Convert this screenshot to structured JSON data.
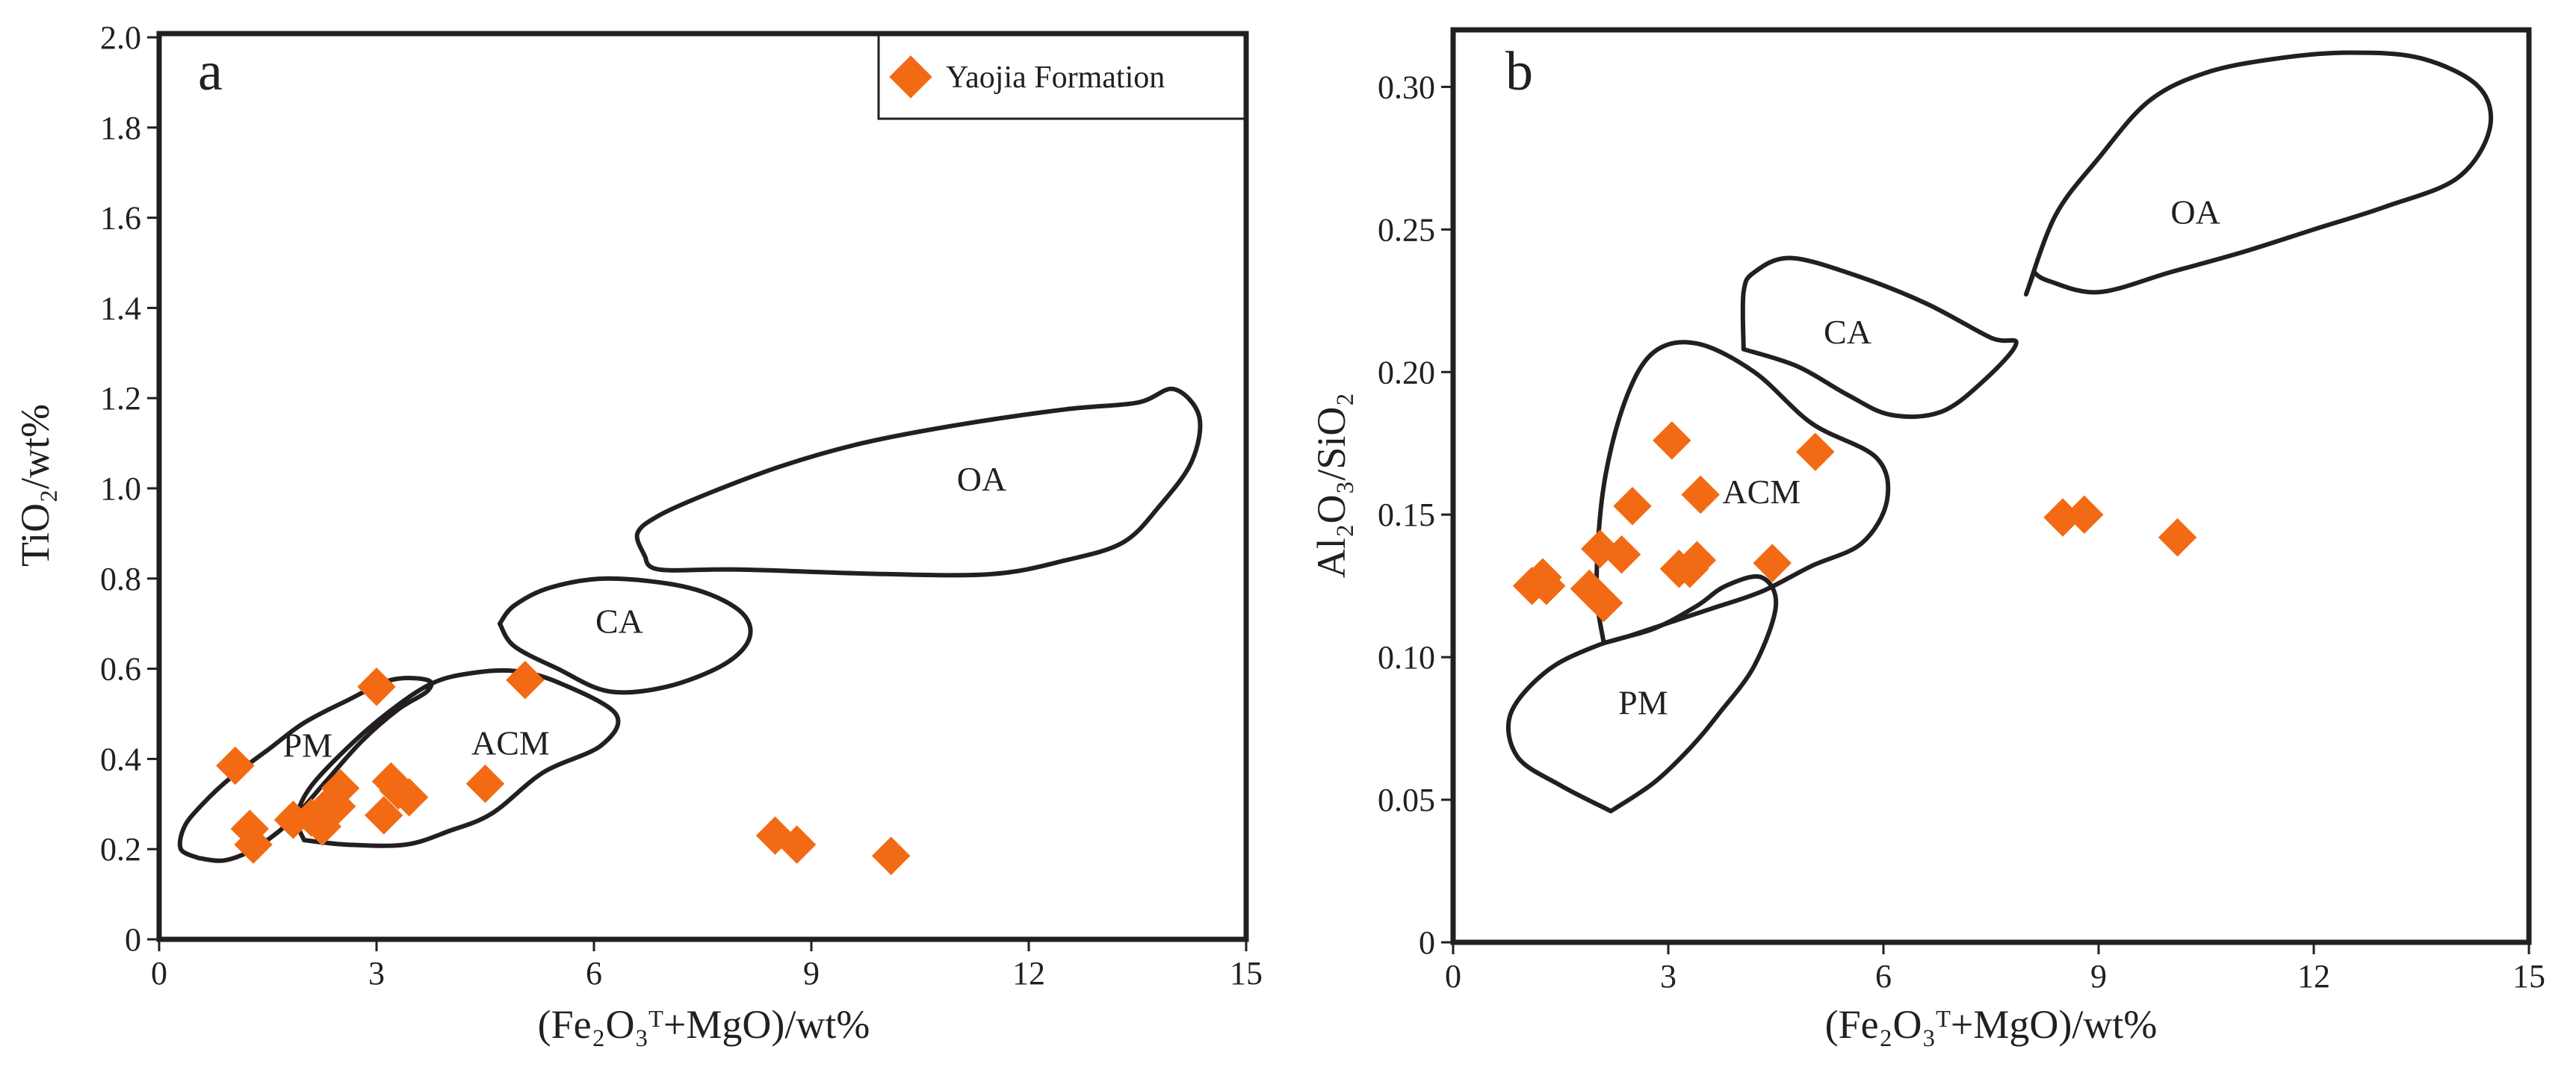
{
  "series_name": "Yaojia Formation",
  "colors": {
    "marker": "#f26a13",
    "line": "#231f20"
  },
  "chart_data": [
    {
      "type": "scatter",
      "panel": "a",
      "xlabel": "(Fe₂O₃ᵀ+MgO)/wt%",
      "ylabel": "TiO₂/wt%",
      "xlim": [
        0,
        15
      ],
      "ylim": [
        0,
        2.0
      ],
      "xticks": [
        0,
        3,
        6,
        9,
        12,
        15
      ],
      "xtick_labels": [
        "0",
        "3",
        "6",
        "9",
        "12",
        "15"
      ],
      "yticks": [
        0,
        0.2,
        0.4,
        0.6,
        0.8,
        1.0,
        1.2,
        1.4,
        1.6,
        1.8,
        2.0
      ],
      "ytick_labels": [
        "0",
        "0.2",
        "0.4",
        "0.6",
        "0.8",
        "1.0",
        "1.2",
        "1.4",
        "1.6",
        "1.8",
        "2.0"
      ],
      "legend": {
        "entries": [
          "Yaojia Formation"
        ],
        "position": "top-right"
      },
      "series": [
        {
          "name": "Yaojia Formation",
          "x": [
            1.05,
            1.25,
            1.3,
            1.85,
            2.1,
            2.25,
            2.35,
            2.45,
            2.5,
            3.0,
            3.1,
            3.2,
            3.3,
            3.45,
            4.5,
            5.05,
            8.5,
            8.8,
            10.1
          ],
          "y": [
            0.385,
            0.245,
            0.21,
            0.265,
            0.27,
            0.25,
            0.3,
            0.295,
            0.335,
            0.56,
            0.275,
            0.35,
            0.33,
            0.315,
            0.345,
            0.575,
            0.23,
            0.21,
            0.185
          ]
        }
      ],
      "fields": [
        {
          "label": "PM",
          "label_at": [
            2.05,
            0.405
          ],
          "outline": [
            [
              0.55,
              0.18
            ],
            [
              0.3,
              0.2
            ],
            [
              0.35,
              0.25
            ],
            [
              0.6,
              0.3
            ],
            [
              1.0,
              0.36
            ],
            [
              1.5,
              0.42
            ],
            [
              2.0,
              0.48
            ],
            [
              2.6,
              0.53
            ],
            [
              3.2,
              0.575
            ],
            [
              3.7,
              0.575
            ],
            [
              3.7,
              0.55
            ],
            [
              3.3,
              0.51
            ],
            [
              2.8,
              0.44
            ],
            [
              2.3,
              0.35
            ],
            [
              1.8,
              0.26
            ],
            [
              1.3,
              0.2
            ],
            [
              0.9,
              0.175
            ],
            [
              0.55,
              0.18
            ]
          ]
        },
        {
          "label": "ACM",
          "label_at": [
            4.85,
            0.41
          ],
          "outline": [
            [
              2.0,
              0.22
            ],
            [
              1.9,
              0.27
            ],
            [
              2.1,
              0.34
            ],
            [
              2.7,
              0.44
            ],
            [
              3.3,
              0.52
            ],
            [
              3.8,
              0.57
            ],
            [
              4.3,
              0.59
            ],
            [
              4.9,
              0.595
            ],
            [
              5.5,
              0.57
            ],
            [
              6.3,
              0.5
            ],
            [
              6.1,
              0.43
            ],
            [
              5.3,
              0.37
            ],
            [
              4.6,
              0.28
            ],
            [
              4.0,
              0.24
            ],
            [
              3.4,
              0.21
            ],
            [
              2.6,
              0.21
            ],
            [
              2.0,
              0.22
            ]
          ]
        },
        {
          "label": "CA",
          "label_at": [
            6.35,
            0.68
          ],
          "outline": [
            [
              4.7,
              0.7
            ],
            [
              4.9,
              0.74
            ],
            [
              5.4,
              0.78
            ],
            [
              6.2,
              0.8
            ],
            [
              7.3,
              0.78
            ],
            [
              8.0,
              0.73
            ],
            [
              8.15,
              0.67
            ],
            [
              7.8,
              0.61
            ],
            [
              7.0,
              0.56
            ],
            [
              6.2,
              0.55
            ],
            [
              5.5,
              0.6
            ],
            [
              4.9,
              0.65
            ],
            [
              4.7,
              0.7
            ]
          ]
        },
        {
          "label": "OA",
          "label_at": [
            11.35,
            0.995
          ],
          "outline": [
            [
              6.7,
              0.85
            ],
            [
              6.6,
              0.9
            ],
            [
              6.9,
              0.94
            ],
            [
              7.6,
              0.99
            ],
            [
              8.6,
              1.05
            ],
            [
              9.7,
              1.1
            ],
            [
              11.0,
              1.14
            ],
            [
              12.5,
              1.175
            ],
            [
              13.5,
              1.19
            ],
            [
              14.0,
              1.22
            ],
            [
              14.35,
              1.16
            ],
            [
              14.25,
              1.06
            ],
            [
              13.8,
              0.96
            ],
            [
              13.3,
              0.88
            ],
            [
              12.5,
              0.84
            ],
            [
              11.5,
              0.81
            ],
            [
              10.0,
              0.81
            ],
            [
              8.0,
              0.82
            ],
            [
              6.9,
              0.82
            ],
            [
              6.7,
              0.85
            ]
          ]
        }
      ]
    },
    {
      "type": "scatter",
      "panel": "b",
      "xlabel": "(Fe₂O₃ᵀ+MgO)/wt%",
      "ylabel": "Al₂O₃/SiO₂",
      "xlim": [
        0,
        15
      ],
      "ylim": [
        0,
        0.32
      ],
      "xticks": [
        0,
        3,
        6,
        9,
        12,
        15
      ],
      "xtick_labels": [
        "0",
        "3",
        "6",
        "9",
        "12",
        "15"
      ],
      "yticks": [
        0,
        0.05,
        0.1,
        0.15,
        0.2,
        0.25,
        0.3
      ],
      "ytick_labels": [
        "0",
        "0.05",
        "0.10",
        "0.15",
        "0.20",
        "0.25",
        "0.30"
      ],
      "series": [
        {
          "name": "Yaojia Formation",
          "x": [
            1.1,
            1.25,
            1.3,
            1.9,
            2.05,
            2.1,
            2.35,
            2.5,
            3.05,
            3.15,
            3.3,
            3.4,
            3.45,
            4.45,
            5.05,
            8.5,
            8.8,
            10.1
          ],
          "y": [
            0.125,
            0.128,
            0.125,
            0.124,
            0.138,
            0.119,
            0.136,
            0.153,
            0.176,
            0.131,
            0.131,
            0.134,
            0.157,
            0.133,
            0.172,
            0.149,
            0.15,
            0.142
          ]
        }
      ],
      "fields": [
        {
          "label": "PM",
          "label_at": [
            2.65,
            0.08
          ],
          "outline": [
            [
              2.2,
              0.046
            ],
            [
              1.5,
              0.055
            ],
            [
              0.9,
              0.065
            ],
            [
              0.8,
              0.08
            ],
            [
              1.3,
              0.095
            ],
            [
              2.0,
              0.104
            ],
            [
              2.8,
              0.11
            ],
            [
              3.4,
              0.118
            ],
            [
              3.8,
              0.125
            ],
            [
              4.3,
              0.128
            ],
            [
              4.5,
              0.118
            ],
            [
              4.2,
              0.097
            ],
            [
              3.7,
              0.08
            ],
            [
              3.3,
              0.068
            ],
            [
              2.8,
              0.056
            ],
            [
              2.2,
              0.046
            ]
          ]
        },
        {
          "label": "ACM",
          "label_at": [
            4.3,
            0.154
          ],
          "outline": [
            [
              2.1,
              0.105
            ],
            [
              2.0,
              0.125
            ],
            [
              2.1,
              0.16
            ],
            [
              2.4,
              0.19
            ],
            [
              2.8,
              0.207
            ],
            [
              3.4,
              0.21
            ],
            [
              4.2,
              0.2
            ],
            [
              5.0,
              0.182
            ],
            [
              5.9,
              0.17
            ],
            [
              6.05,
              0.155
            ],
            [
              5.7,
              0.14
            ],
            [
              5.0,
              0.132
            ],
            [
              4.3,
              0.123
            ],
            [
              3.6,
              0.117
            ],
            [
              3.0,
              0.112
            ],
            [
              2.4,
              0.107
            ],
            [
              2.1,
              0.105
            ]
          ]
        },
        {
          "label": "CA",
          "label_at": [
            5.5,
            0.21
          ],
          "outline": [
            [
              4.05,
              0.208
            ],
            [
              4.05,
              0.228
            ],
            [
              4.2,
              0.235
            ],
            [
              4.7,
              0.24
            ],
            [
              5.6,
              0.234
            ],
            [
              6.6,
              0.224
            ],
            [
              7.5,
              0.212
            ],
            [
              7.85,
              0.21
            ],
            [
              7.4,
              0.197
            ],
            [
              6.8,
              0.186
            ],
            [
              6.1,
              0.185
            ],
            [
              5.5,
              0.192
            ],
            [
              4.8,
              0.202
            ],
            [
              4.05,
              0.208
            ]
          ]
        },
        {
          "label": "OA",
          "label_at": [
            10.35,
            0.252
          ],
          "outline": [
            [
              8.1,
              0.235
            ],
            [
              8.0,
              0.228
            ],
            [
              8.4,
              0.255
            ],
            [
              9.0,
              0.275
            ],
            [
              9.7,
              0.295
            ],
            [
              10.5,
              0.305
            ],
            [
              11.5,
              0.31
            ],
            [
              12.5,
              0.312
            ],
            [
              13.5,
              0.31
            ],
            [
              14.3,
              0.3
            ],
            [
              14.45,
              0.285
            ],
            [
              14.0,
              0.268
            ],
            [
              13.0,
              0.258
            ],
            [
              12.0,
              0.25
            ],
            [
              11.0,
              0.242
            ],
            [
              10.0,
              0.235
            ],
            [
              9.0,
              0.228
            ],
            [
              8.3,
              0.232
            ],
            [
              8.1,
              0.235
            ]
          ]
        }
      ]
    }
  ]
}
